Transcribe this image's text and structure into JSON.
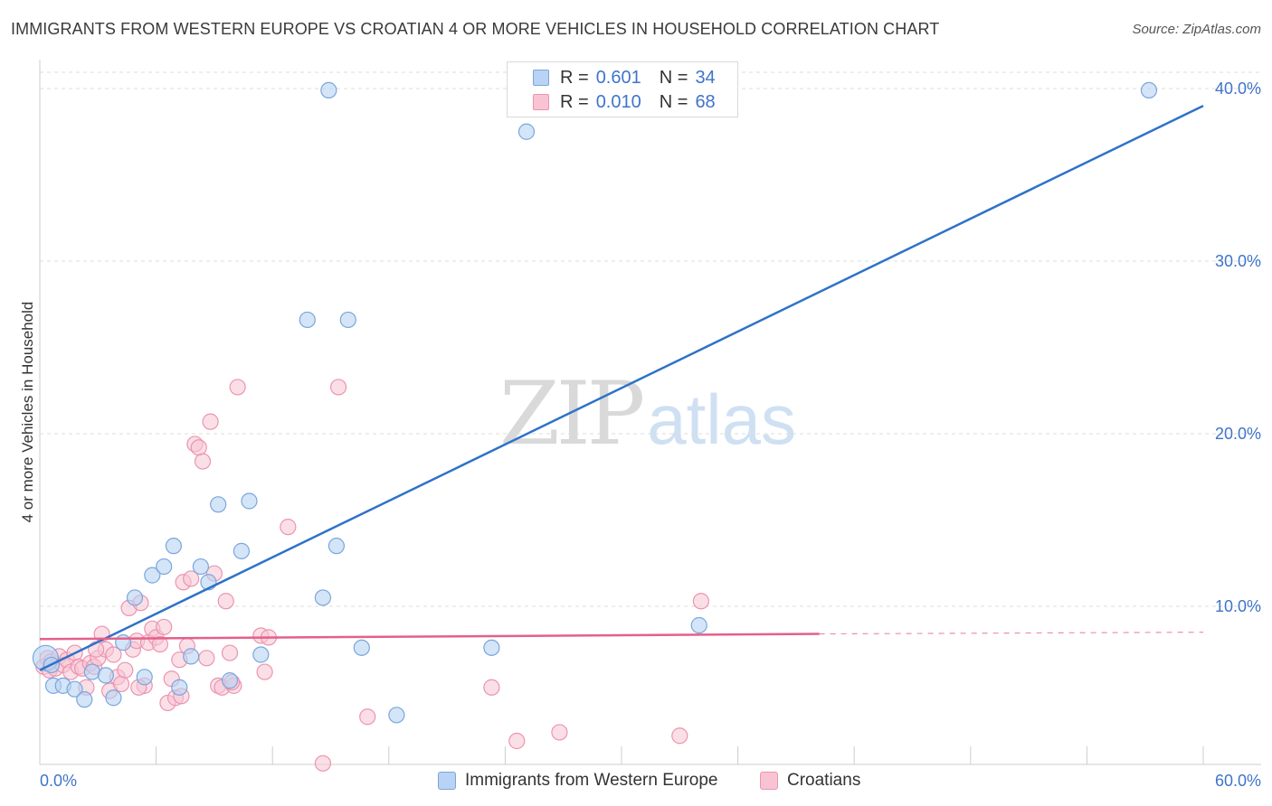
{
  "header": {
    "title": "IMMIGRANTS FROM WESTERN EUROPE VS CROATIAN 4 OR MORE VEHICLES IN HOUSEHOLD CORRELATION CHART",
    "source": "Source: ZipAtlas.com"
  },
  "watermark": {
    "zip": "ZIP",
    "atlas": "atlas"
  },
  "legend": {
    "rows": [
      {
        "r_key": "R =",
        "r_value": "0.601",
        "n_key": "N =",
        "n_value": "34"
      },
      {
        "r_key": "R =",
        "r_value": "0.010",
        "n_key": "N =",
        "n_value": "68"
      }
    ]
  },
  "bottom_legend": {
    "items": [
      "Immigrants from Western Europe",
      "Croatians"
    ]
  },
  "colors": {
    "blue_fill": "#b8d3f3",
    "blue_stroke": "#7aa6dc",
    "blue_line": "#2e72c8",
    "pink_fill": "#f8c4d4",
    "pink_stroke": "#ec94b0",
    "pink_line": "#e4608a",
    "grid": "#dddddd",
    "axis_text": "#3f74c9"
  },
  "chart_data": {
    "type": "scatter",
    "title": "IMMIGRANTS FROM WESTERN EUROPE VS CROATIAN 4 OR MORE VEHICLES IN HOUSEHOLD CORRELATION CHART",
    "xlabel": "",
    "ylabel": "4 or more Vehicles in Household",
    "xlim": [
      0,
      60
    ],
    "ylim": [
      0,
      42
    ],
    "x_tick_labels": [
      "0.0%",
      "60.0%"
    ],
    "y_ticks": [
      10,
      20,
      30,
      40
    ],
    "y_tick_labels": [
      "10.0%",
      "20.0%",
      "30.0%",
      "40.0%"
    ],
    "grid": true,
    "series": [
      {
        "name": "Immigrants from Western Europe",
        "color": "blue",
        "R": 0.601,
        "N": 34,
        "trend": {
          "x0": 0,
          "y0": 6.3,
          "x1": 60,
          "y1": 39.0,
          "dashed_from": null
        },
        "points": [
          {
            "x": 0.3,
            "y": 7.0,
            "big": true
          },
          {
            "x": 0.6,
            "y": 6.6
          },
          {
            "x": 0.7,
            "y": 5.4
          },
          {
            "x": 1.2,
            "y": 5.4
          },
          {
            "x": 1.8,
            "y": 5.2
          },
          {
            "x": 2.3,
            "y": 4.6
          },
          {
            "x": 2.7,
            "y": 6.2
          },
          {
            "x": 3.4,
            "y": 6.0
          },
          {
            "x": 3.8,
            "y": 4.7
          },
          {
            "x": 4.3,
            "y": 7.9
          },
          {
            "x": 4.9,
            "y": 10.5
          },
          {
            "x": 5.4,
            "y": 5.9
          },
          {
            "x": 5.8,
            "y": 11.8
          },
          {
            "x": 6.4,
            "y": 12.3
          },
          {
            "x": 6.9,
            "y": 13.5
          },
          {
            "x": 7.2,
            "y": 5.3
          },
          {
            "x": 7.8,
            "y": 7.1
          },
          {
            "x": 8.3,
            "y": 12.3
          },
          {
            "x": 8.7,
            "y": 11.4
          },
          {
            "x": 9.2,
            "y": 15.9
          },
          {
            "x": 9.8,
            "y": 5.7
          },
          {
            "x": 10.4,
            "y": 13.2
          },
          {
            "x": 10.8,
            "y": 16.1
          },
          {
            "x": 11.4,
            "y": 7.2
          },
          {
            "x": 13.8,
            "y": 26.6
          },
          {
            "x": 14.6,
            "y": 10.5
          },
          {
            "x": 14.9,
            "y": 39.9
          },
          {
            "x": 15.3,
            "y": 13.5
          },
          {
            "x": 15.9,
            "y": 26.6
          },
          {
            "x": 16.6,
            "y": 7.6
          },
          {
            "x": 18.4,
            "y": 3.7
          },
          {
            "x": 23.3,
            "y": 7.6
          },
          {
            "x": 25.1,
            "y": 37.5
          },
          {
            "x": 34.0,
            "y": 8.9
          },
          {
            "x": 57.2,
            "y": 39.9
          }
        ]
      },
      {
        "name": "Croatians",
        "color": "pink",
        "R": 0.01,
        "N": 68,
        "trend": {
          "x0": 0,
          "y0": 8.1,
          "x1": 40.2,
          "y1": 8.4,
          "dashed_to_x": 60,
          "dashed_to_y": 8.5
        },
        "points": [
          {
            "x": 0.2,
            "y": 6.5
          },
          {
            "x": 0.4,
            "y": 7.0
          },
          {
            "x": 0.5,
            "y": 6.3
          },
          {
            "x": 0.6,
            "y": 6.8
          },
          {
            "x": 0.8,
            "y": 6.4
          },
          {
            "x": 1.0,
            "y": 7.1
          },
          {
            "x": 1.2,
            "y": 6.6
          },
          {
            "x": 1.4,
            "y": 6.9
          },
          {
            "x": 1.6,
            "y": 6.2
          },
          {
            "x": 1.8,
            "y": 7.3
          },
          {
            "x": 2.0,
            "y": 6.5
          },
          {
            "x": 2.2,
            "y": 6.4
          },
          {
            "x": 2.4,
            "y": 5.3
          },
          {
            "x": 2.6,
            "y": 6.7
          },
          {
            "x": 2.8,
            "y": 6.5
          },
          {
            "x": 3.0,
            "y": 7.0
          },
          {
            "x": 3.2,
            "y": 8.4
          },
          {
            "x": 3.4,
            "y": 7.5
          },
          {
            "x": 3.6,
            "y": 5.1
          },
          {
            "x": 3.8,
            "y": 7.2
          },
          {
            "x": 4.0,
            "y": 5.9
          },
          {
            "x": 4.2,
            "y": 5.5
          },
          {
            "x": 4.4,
            "y": 6.3
          },
          {
            "x": 4.6,
            "y": 9.9
          },
          {
            "x": 4.8,
            "y": 7.5
          },
          {
            "x": 5.0,
            "y": 8.0
          },
          {
            "x": 5.2,
            "y": 10.2
          },
          {
            "x": 5.4,
            "y": 5.4
          },
          {
            "x": 5.6,
            "y": 7.9
          },
          {
            "x": 5.8,
            "y": 8.7
          },
          {
            "x": 6.0,
            "y": 8.2
          },
          {
            "x": 6.2,
            "y": 7.8
          },
          {
            "x": 6.4,
            "y": 8.8
          },
          {
            "x": 6.6,
            "y": 4.4
          },
          {
            "x": 6.8,
            "y": 5.8
          },
          {
            "x": 7.0,
            "y": 4.7
          },
          {
            "x": 7.2,
            "y": 6.9
          },
          {
            "x": 7.4,
            "y": 11.4
          },
          {
            "x": 7.6,
            "y": 7.7
          },
          {
            "x": 7.8,
            "y": 11.6
          },
          {
            "x": 8.0,
            "y": 19.4
          },
          {
            "x": 8.2,
            "y": 19.2
          },
          {
            "x": 8.4,
            "y": 18.4
          },
          {
            "x": 8.6,
            "y": 7.0
          },
          {
            "x": 8.8,
            "y": 20.7
          },
          {
            "x": 9.0,
            "y": 11.9
          },
          {
            "x": 9.2,
            "y": 5.4
          },
          {
            "x": 9.4,
            "y": 5.3
          },
          {
            "x": 9.6,
            "y": 10.3
          },
          {
            "x": 9.8,
            "y": 7.3
          },
          {
            "x": 10.0,
            "y": 5.4
          },
          {
            "x": 10.2,
            "y": 22.7
          },
          {
            "x": 11.4,
            "y": 8.3
          },
          {
            "x": 11.6,
            "y": 6.2
          },
          {
            "x": 11.8,
            "y": 8.2
          },
          {
            "x": 12.8,
            "y": 14.6
          },
          {
            "x": 14.6,
            "y": 0.9
          },
          {
            "x": 15.4,
            "y": 22.7
          },
          {
            "x": 16.9,
            "y": 3.6
          },
          {
            "x": 23.3,
            "y": 5.3
          },
          {
            "x": 24.6,
            "y": 2.2
          },
          {
            "x": 26.8,
            "y": 2.7
          },
          {
            "x": 33.0,
            "y": 2.5
          },
          {
            "x": 34.1,
            "y": 10.3
          },
          {
            "x": 2.9,
            "y": 7.5
          },
          {
            "x": 5.1,
            "y": 5.3
          },
          {
            "x": 7.3,
            "y": 4.8
          },
          {
            "x": 9.9,
            "y": 5.6
          }
        ]
      }
    ]
  }
}
